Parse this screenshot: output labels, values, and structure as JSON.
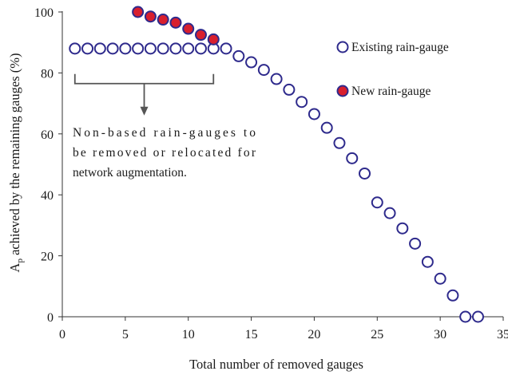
{
  "chart_data": {
    "type": "scatter",
    "xlabel": "Total number of removed gauges",
    "ylabel_main": "A",
    "ylabel_sub": "p",
    "ylabel_rest": " achieved by the remaining gauges (%)",
    "xlim": [
      0,
      35
    ],
    "ylim": [
      0,
      100
    ],
    "xticks": [
      0,
      5,
      10,
      15,
      20,
      25,
      30,
      35
    ],
    "yticks": [
      0,
      20,
      40,
      60,
      80,
      100
    ],
    "grid": false,
    "legend_position": "top-right",
    "series": [
      {
        "name": "Existing rain-gauge",
        "marker": "open-circle",
        "color": "#2e2a8c",
        "fill": "#ffffff",
        "x": [
          1,
          2,
          3,
          4,
          5,
          6,
          7,
          8,
          9,
          10,
          11,
          12,
          13,
          14,
          15,
          16,
          17,
          18,
          19,
          20,
          21,
          22,
          23,
          24,
          25,
          26,
          27,
          28,
          29,
          30,
          31,
          32,
          33
        ],
        "y": [
          88,
          88,
          88,
          88,
          88,
          88,
          88,
          88,
          88,
          88,
          88,
          88,
          88,
          85.5,
          83.5,
          81,
          78,
          74.5,
          70.5,
          66.5,
          62,
          57,
          52,
          47,
          37.5,
          34,
          29,
          24,
          18,
          12.5,
          7,
          0,
          0
        ]
      },
      {
        "name": "New rain-gauge",
        "marker": "filled-circle",
        "color": "#2e2a8c",
        "fill": "#d81f2e",
        "x": [
          6,
          7,
          8,
          9,
          10,
          11,
          12
        ],
        "y": [
          100,
          98.5,
          97.5,
          96.5,
          94.5,
          92.5,
          91
        ]
      }
    ],
    "annotation": {
      "lines": [
        "Non-based rain-gauges to",
        "be removed or relocated for",
        "network augmentation."
      ],
      "bracket_x_range": [
        1,
        12
      ]
    }
  }
}
